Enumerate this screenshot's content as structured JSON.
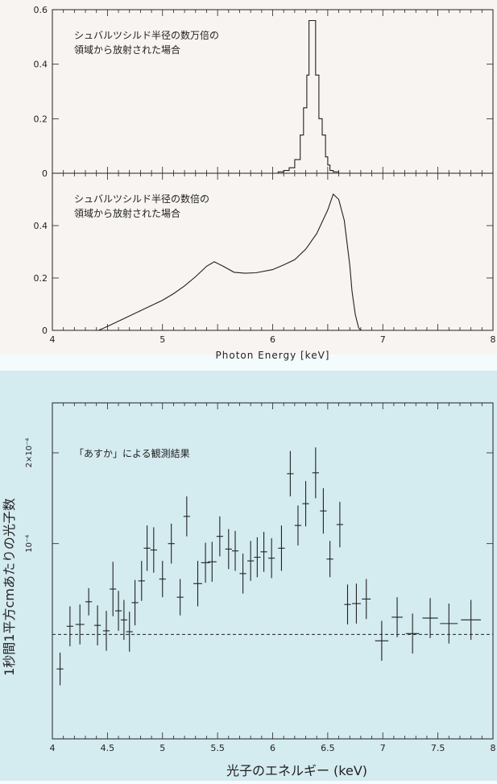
{
  "colors": {
    "page_background": "#f4fbfd",
    "upper_panel_background": "#f7f4f1",
    "lower_panel_background": "#d4ebf0",
    "ink": "#222222"
  },
  "chart_data": [
    {
      "type": "line",
      "panel": "upper",
      "annotation": [
        "シュバルツシルド半径の数万倍の",
        "領域から放射された場合"
      ],
      "xlim": [
        4,
        8
      ],
      "ylim": [
        0,
        0.6
      ],
      "yticks": [
        0,
        0.2,
        0.4,
        0.6
      ],
      "ytick_labels": [
        "0",
        "0.2",
        "0.4",
        "0.6"
      ],
      "step": true,
      "x": [
        4.0,
        5.0,
        5.9,
        6.05,
        6.1,
        6.15,
        6.2,
        6.25,
        6.28,
        6.31,
        6.33,
        6.36,
        6.39,
        6.42,
        6.45,
        6.48,
        6.5,
        6.52,
        6.55,
        6.6,
        8.0
      ],
      "y": [
        0,
        0,
        0,
        0.005,
        0.01,
        0.02,
        0.05,
        0.14,
        0.24,
        0.36,
        0.56,
        0.56,
        0.36,
        0.2,
        0.14,
        0.06,
        0.03,
        0.01,
        0.005,
        0,
        0
      ]
    },
    {
      "type": "line",
      "panel": "middle",
      "annotation": [
        "シュバルツシルド半径の数倍の",
        "領域から放射された場合"
      ],
      "xlim": [
        4,
        8
      ],
      "ylim": [
        0,
        0.6
      ],
      "yticks": [
        0,
        0.2,
        0.4
      ],
      "ytick_labels": [
        "0",
        "0.2",
        "0.4"
      ],
      "xticks": [
        4,
        5,
        6,
        7,
        8
      ],
      "xtick_labels": [
        "4",
        "5",
        "6",
        "7",
        "8"
      ],
      "xlabel": "Photon Energy [keV]",
      "x": [
        4.42,
        4.5,
        4.6,
        4.7,
        4.8,
        4.9,
        5.0,
        5.1,
        5.2,
        5.3,
        5.4,
        5.47,
        5.55,
        5.65,
        5.75,
        5.85,
        6.0,
        6.1,
        6.2,
        6.3,
        6.4,
        6.5,
        6.55,
        6.6,
        6.65,
        6.7,
        6.72,
        6.75,
        6.78,
        6.8
      ],
      "y": [
        0,
        0.015,
        0.035,
        0.055,
        0.075,
        0.095,
        0.115,
        0.14,
        0.17,
        0.205,
        0.245,
        0.262,
        0.245,
        0.222,
        0.218,
        0.22,
        0.232,
        0.25,
        0.27,
        0.31,
        0.37,
        0.46,
        0.52,
        0.5,
        0.42,
        0.25,
        0.15,
        0.06,
        0.01,
        0
      ]
    },
    {
      "type": "scatter",
      "panel": "lower",
      "title": "「あすか」による観測結果",
      "xlim": [
        4,
        8
      ],
      "ylim": [
        -0.000115,
        0.000255
      ],
      "xticks": [
        4,
        4.5,
        5,
        5.5,
        6,
        6.5,
        7,
        7.5,
        8
      ],
      "xtick_labels": [
        "4",
        "4.5",
        "5",
        "5.5",
        "6",
        "6.5",
        "7",
        "7.5",
        "8"
      ],
      "yticks": [
        0.0001,
        0.0002
      ],
      "ytick_labels": [
        "10⁻⁴",
        "2×10⁻⁴"
      ],
      "xlabel": "光子のエネルギー (keV)",
      "ylabel": "1秒間1平方cmあたりの光子数",
      "zero_line": true,
      "points": [
        {
          "x": 4.07,
          "y": -3.8e-05,
          "xerr": 0.03,
          "yerr": 1.8e-05
        },
        {
          "x": 4.16,
          "y": 9e-06,
          "xerr": 0.03,
          "yerr": 2.2e-05
        },
        {
          "x": 4.25,
          "y": 1.1e-05,
          "xerr": 0.04,
          "yerr": 2.2e-05
        },
        {
          "x": 4.33,
          "y": 3.6e-05,
          "xerr": 0.03,
          "yerr": 1.5e-05
        },
        {
          "x": 4.41,
          "y": 1e-05,
          "xerr": 0.03,
          "yerr": 2.2e-05
        },
        {
          "x": 4.49,
          "y": 4e-06,
          "xerr": 0.03,
          "yerr": 2.2e-05
        },
        {
          "x": 4.55,
          "y": 5e-05,
          "xerr": 0.03,
          "yerr": 3e-05
        },
        {
          "x": 4.6,
          "y": 2.6e-05,
          "xerr": 0.03,
          "yerr": 2.2e-05
        },
        {
          "x": 4.65,
          "y": 1.6e-05,
          "xerr": 0.03,
          "yerr": 2.2e-05
        },
        {
          "x": 4.7,
          "y": 3e-06,
          "xerr": 0.03,
          "yerr": 2.2e-05
        },
        {
          "x": 4.75,
          "y": 3.5e-05,
          "xerr": 0.03,
          "yerr": 2.5e-05
        },
        {
          "x": 4.81,
          "y": 5.9e-05,
          "xerr": 0.03,
          "yerr": 2.2e-05
        },
        {
          "x": 4.86,
          "y": 9.5e-05,
          "xerr": 0.03,
          "yerr": 2.5e-05
        },
        {
          "x": 4.92,
          "y": 9.3e-05,
          "xerr": 0.03,
          "yerr": 2.5e-05
        },
        {
          "x": 5.0,
          "y": 6.1e-05,
          "xerr": 0.03,
          "yerr": 2e-05
        },
        {
          "x": 5.08,
          "y": 0.0001,
          "xerr": 0.03,
          "yerr": 2.2e-05
        },
        {
          "x": 5.16,
          "y": 4.1e-05,
          "xerr": 0.03,
          "yerr": 2e-05
        },
        {
          "x": 5.22,
          "y": 0.00013,
          "xerr": 0.03,
          "yerr": 2.2e-05
        },
        {
          "x": 5.32,
          "y": 5.6e-05,
          "xerr": 0.04,
          "yerr": 2.5e-05
        },
        {
          "x": 5.39,
          "y": 7.9e-05,
          "xerr": 0.04,
          "yerr": 2.2e-05
        },
        {
          "x": 5.45,
          "y": 8e-05,
          "xerr": 0.04,
          "yerr": 2.2e-05
        },
        {
          "x": 5.52,
          "y": 0.000108,
          "xerr": 0.03,
          "yerr": 2.2e-05
        },
        {
          "x": 5.6,
          "y": 9.4e-05,
          "xerr": 0.03,
          "yerr": 2.2e-05
        },
        {
          "x": 5.66,
          "y": 9.2e-05,
          "xerr": 0.03,
          "yerr": 2.2e-05
        },
        {
          "x": 5.73,
          "y": 6.7e-05,
          "xerr": 0.03,
          "yerr": 2.2e-05
        },
        {
          "x": 5.8,
          "y": 8.1e-05,
          "xerr": 0.03,
          "yerr": 2.2e-05
        },
        {
          "x": 5.86,
          "y": 8.5e-05,
          "xerr": 0.03,
          "yerr": 2.2e-05
        },
        {
          "x": 5.92,
          "y": 9.1e-05,
          "xerr": 0.03,
          "yerr": 2.2e-05
        },
        {
          "x": 5.99,
          "y": 8.4e-05,
          "xerr": 0.03,
          "yerr": 2.2e-05
        },
        {
          "x": 6.08,
          "y": 9.5e-05,
          "xerr": 0.03,
          "yerr": 2.5e-05
        },
        {
          "x": 6.16,
          "y": 0.000177,
          "xerr": 0.03,
          "yerr": 2.5e-05
        },
        {
          "x": 6.23,
          "y": 0.00012,
          "xerr": 0.03,
          "yerr": 2.2e-05
        },
        {
          "x": 6.3,
          "y": 0.000144,
          "xerr": 0.03,
          "yerr": 2.5e-05
        },
        {
          "x": 6.39,
          "y": 0.000178,
          "xerr": 0.03,
          "yerr": 2.8e-05
        },
        {
          "x": 6.46,
          "y": 0.000136,
          "xerr": 0.03,
          "yerr": 2.5e-05
        },
        {
          "x": 6.52,
          "y": 8.3e-05,
          "xerr": 0.03,
          "yerr": 2e-05
        },
        {
          "x": 6.61,
          "y": 0.000121,
          "xerr": 0.03,
          "yerr": 2.5e-05
        },
        {
          "x": 6.68,
          "y": 3.3e-05,
          "xerr": 0.03,
          "yerr": 2.2e-05
        },
        {
          "x": 6.76,
          "y": 3.4e-05,
          "xerr": 0.04,
          "yerr": 2.2e-05
        },
        {
          "x": 6.85,
          "y": 3.9e-05,
          "xerr": 0.04,
          "yerr": 2.2e-05
        },
        {
          "x": 6.99,
          "y": -7e-06,
          "xerr": 0.06,
          "yerr": 2.2e-05
        },
        {
          "x": 7.13,
          "y": 1.9e-05,
          "xerr": 0.05,
          "yerr": 2.2e-05
        },
        {
          "x": 7.27,
          "y": 1e-06,
          "xerr": 0.06,
          "yerr": 2.2e-05
        },
        {
          "x": 7.43,
          "y": 1.8e-05,
          "xerr": 0.07,
          "yerr": 2.2e-05
        },
        {
          "x": 7.6,
          "y": 1.2e-05,
          "xerr": 0.08,
          "yerr": 2.2e-05
        },
        {
          "x": 7.8,
          "y": 1.6e-05,
          "xerr": 0.09,
          "yerr": 2.2e-05
        }
      ]
    }
  ]
}
